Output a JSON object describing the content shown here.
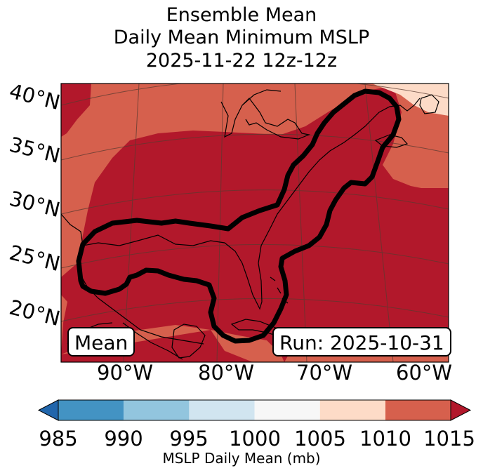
{
  "title": {
    "line1": "Ensemble Mean",
    "line2": "Daily Mean Minimum MSLP",
    "line3": "2025-11-22 12z-12z"
  },
  "map": {
    "lat_labels": [
      "40°N",
      "35°N",
      "30°N",
      "25°N",
      "20°N"
    ],
    "lon_labels": [
      "90°W",
      "80°W",
      "70°W",
      "60°W"
    ],
    "box_left": "Mean",
    "box_right": "Run: 2025-10-31",
    "colors": {
      "c1015": "#b2182b",
      "c1010": "#d6604d",
      "c1005": "#fddbc7",
      "contour": "#000000",
      "coast": "#000000",
      "grid": "#5a3a30"
    }
  },
  "colorbar": {
    "ticks": [
      "985",
      "990",
      "995",
      "1000",
      "1005",
      "1010",
      "1015"
    ],
    "label": "MSLP Daily Mean (mb)",
    "colors": [
      "#4393c3",
      "#92c5de",
      "#d1e5f0",
      "#f7f7f7",
      "#fddbc7",
      "#d6604d"
    ],
    "under_color": "#2166ac",
    "over_color": "#b2182b"
  }
}
